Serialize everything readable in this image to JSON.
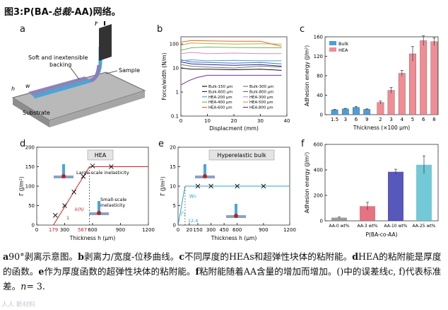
{
  "figure_title": "图3:P(BA-",
  "figure_title_italic": "总裁",
  "figure_title_end": "-AA)网络。",
  "panel_a": {
    "letter": "a",
    "force_label": "F",
    "backing_label_1": "Soft and inextensible",
    "backing_label_2": "backing",
    "sample_label": "Sample",
    "substrate_label": "Substrate",
    "h_label": "h",
    "w_label": "w"
  },
  "panel_b": {
    "letter": "b",
    "legend": [
      "Bulk-150 μm",
      "Bulk-300 μm",
      "Bulk-600 μm",
      "Bulk-800 μm",
      "HEA-200 μm",
      "HEA-300 μm",
      "HEA-400 μm",
      "HEA-500 μm",
      "HEA-600 μm",
      "HEA-800 μm"
    ],
    "legend_colors": [
      "#111111",
      "#777777",
      "#2a2a8a",
      "#4a6fd0",
      "#4da6c9",
      "#d98ec0",
      "#6fb85a",
      "#c8a93a",
      "#e06a2a",
      "#7a2aa0"
    ]
  },
  "panel_c": {
    "letter": "c",
    "legend": [
      "Bulk",
      "HEA"
    ]
  },
  "panel_d": {
    "letter": "d",
    "box_label": "HEA",
    "large_label": "Large-scale inelasticity",
    "small_label_1": "Small-scale",
    "small_label_2": "inelasticity",
    "kh_label": "k(h)",
    "one_label": "1",
    "red_ticks": [
      "179",
      "567"
    ]
  },
  "panel_e": {
    "letter": "e",
    "box_label": "Hyperelastic bulk",
    "w0_label": "W₀",
    "gamma0_label": "Γ₀",
    "slope_label": "12.4"
  },
  "panel_f": {
    "letter": "f"
  },
  "chart_data": [
    {
      "type": "line",
      "title": "",
      "xlabel": "Displacment (mm)",
      "ylabel": "Force/width (N/m)",
      "xlim": [
        0,
        40
      ],
      "ylim": [
        0.1,
        200
      ],
      "yscale": "log",
      "xticks": [
        0,
        10,
        20,
        30,
        40
      ],
      "yticks": [
        "0.1",
        "1",
        "10",
        "100"
      ],
      "series": [
        {
          "name": "Bulk-150 μm",
          "x": [
            0,
            4,
            10,
            20,
            30,
            38
          ],
          "y": [
            10,
            9,
            9,
            8.5,
            9,
            8
          ]
        },
        {
          "name": "Bulk-300 μm",
          "x": [
            0,
            4,
            10,
            20,
            30,
            38
          ],
          "y": [
            14,
            12,
            11,
            10,
            12,
            11
          ]
        },
        {
          "name": "Bulk-600 μm",
          "x": [
            0,
            4,
            10,
            20,
            30,
            38
          ],
          "y": [
            18,
            15,
            14,
            13,
            14,
            12
          ]
        },
        {
          "name": "Bulk-800 μm",
          "x": [
            0,
            4,
            10,
            20,
            30,
            38
          ],
          "y": [
            22,
            18,
            17,
            16,
            17,
            15
          ]
        },
        {
          "name": "HEA-200 μm",
          "x": [
            0,
            4,
            10,
            20,
            30,
            38
          ],
          "y": [
            20,
            22,
            20,
            21,
            20,
            20
          ]
        },
        {
          "name": "HEA-300 μm",
          "x": [
            0,
            4,
            10,
            20,
            30,
            38
          ],
          "y": [
            40,
            45,
            40,
            42,
            40,
            40
          ]
        },
        {
          "name": "HEA-400 μm",
          "x": [
            0,
            4,
            10,
            20,
            30,
            38
          ],
          "y": [
            55,
            70,
            75,
            72,
            70,
            70
          ]
        },
        {
          "name": "HEA-500 μm",
          "x": [
            0,
            4,
            10,
            20,
            30,
            38
          ],
          "y": [
            90,
            110,
            105,
            100,
            102,
            100
          ]
        },
        {
          "name": "HEA-600 μm",
          "x": [
            0,
            4,
            10,
            20,
            30,
            38
          ],
          "y": [
            120,
            140,
            135,
            130,
            130,
            80
          ]
        },
        {
          "name": "HEA-800 μm",
          "x": [
            0,
            3,
            6,
            10,
            20,
            30,
            38
          ],
          "y": [
            2,
            3,
            4,
            5,
            5,
            5,
            5
          ]
        }
      ]
    },
    {
      "type": "bar",
      "title": "",
      "xlabel": "Thickness (×100 μm)",
      "ylabel": "Adhesion energy (J/m²)",
      "ylim": [
        0,
        160
      ],
      "yticks": [
        0,
        40,
        80,
        120,
        160
      ],
      "series": [
        {
          "name": "Bulk",
          "categories": [
            "1.5",
            "3",
            "6",
            "9"
          ],
          "values": [
            10,
            12,
            15,
            11
          ],
          "errors": [
            1,
            1,
            2,
            1
          ]
        },
        {
          "name": "HEA",
          "categories": [
            "2",
            "3",
            "4",
            "5",
            "6",
            "8"
          ],
          "values": [
            25,
            50,
            85,
            125,
            152,
            150
          ],
          "errors": [
            3,
            6,
            6,
            15,
            10,
            8
          ]
        }
      ]
    },
    {
      "type": "scatter",
      "title": "",
      "xlabel": "Thickness h (μm)",
      "ylabel": "Γ (J/m²)",
      "xlim": [
        0,
        1200
      ],
      "ylim": [
        0,
        200
      ],
      "xticks": [
        "0",
        "300",
        "600",
        "900",
        "1200"
      ],
      "yticks": [
        "0",
        "50",
        "100",
        "150",
        "200"
      ],
      "points_x": [
        200,
        300,
        400,
        500,
        600,
        800
      ],
      "points_y": [
        25,
        50,
        85,
        125,
        152,
        150
      ],
      "plateau": 150
    },
    {
      "type": "scatter",
      "title": "",
      "xlabel": "Thickness h (μm)",
      "ylabel": "Γ (J/m²)",
      "xlim": [
        0,
        1200
      ],
      "ylim": [
        0,
        20
      ],
      "xticks": [
        "0",
        "20",
        "150",
        "300",
        "450",
        "600",
        "900",
        "1200"
      ],
      "yticks": [
        "0",
        "5",
        "10",
        "15",
        "20"
      ],
      "points_x": [
        150,
        300,
        600,
        900
      ],
      "points_y": [
        10,
        10,
        10,
        10
      ],
      "plateau": 10
    },
    {
      "type": "bar",
      "title": "",
      "xlabel": "P(BA-co-AA)",
      "ylabel": "Adhesion energy (J/m²)",
      "ylim": [
        0,
        600
      ],
      "yticks": [
        0,
        200,
        400,
        600
      ],
      "categories": [
        "AA-0 wt%",
        "AA-3 wt%",
        "AA-10 wt%",
        "AA-25 wt%"
      ],
      "values": [
        25,
        115,
        385,
        440
      ],
      "errors": [
        5,
        30,
        20,
        70
      ],
      "colors": [
        "#8a8a8a",
        "#e25a6a",
        "#3a3ab0",
        "#5ac0d0"
      ]
    }
  ],
  "caption": {
    "a_lbl": "a",
    "a_txt": "90°剥离示意图。",
    "b_lbl": "b",
    "b_txt": "剥离力/宽度-位移曲线。",
    "c_lbl": "c",
    "c_txt": "不同厚度的HEAs和超弹性块体的粘附能。",
    "d_lbl": "d",
    "d_txt": "HEA的粘附能是厚度的函数。",
    "e_lbl": "e",
    "e_txt": "作为厚度函数的超弹性块体的粘附能。",
    "f_lbl": "f",
    "f_txt": "粘附能随着AA含量的增加而增加。()中的误差线c, f)代表标准差。",
    "n_txt": "n",
    "n_val": "= 3."
  },
  "watermark": "人人 新材料"
}
